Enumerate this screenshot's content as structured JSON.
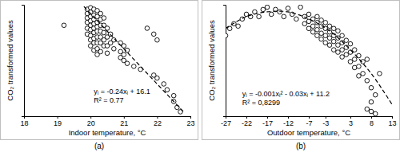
{
  "chart_data": [
    {
      "type": "scatter",
      "title": "(a)",
      "x_label": "Indoor temperature, °C",
      "y_label": "CO₂ transformed values",
      "annotations": [
        "yᵢ = -0.24xᵢ + 16.1",
        "R² = 0.77"
      ],
      "xlim": [
        18,
        23
      ],
      "xticks": [
        18,
        19,
        20,
        21,
        22,
        23
      ],
      "ylim": [
        10.6,
        11.36
      ],
      "tick_labels": "x",
      "grid": false,
      "series": [
        {
          "type": "scatter",
          "marker": "circle",
          "color": "#000000",
          "x": [
            19.2,
            19.9,
            19.9,
            19.9,
            19.9,
            19.9,
            19.9,
            20.0,
            20.0,
            20.0,
            20.0,
            20.0,
            20.0,
            20.0,
            20.0,
            20.0,
            20.1,
            20.1,
            20.1,
            20.1,
            20.1,
            20.1,
            20.1,
            20.1,
            20.1,
            20.2,
            20.2,
            20.2,
            20.2,
            20.2,
            20.2,
            20.2,
            20.2,
            20.2,
            20.3,
            20.3,
            20.3,
            20.3,
            20.3,
            20.3,
            20.3,
            20.4,
            20.4,
            20.4,
            20.4,
            20.4,
            20.5,
            20.5,
            20.5,
            20.5,
            20.6,
            20.6,
            20.7,
            20.7,
            20.9,
            20.9,
            20.9,
            21.0,
            21.0,
            21.0,
            21.1,
            21.1,
            21.3,
            21.5,
            21.7,
            21.9,
            21.9,
            22.0,
            22.0,
            22.2,
            22.3,
            22.5,
            22.5,
            22.6,
            22.7
          ],
          "values": [
            11.22,
            11.33,
            11.3,
            11.27,
            11.24,
            11.2,
            11.16,
            11.34,
            11.31,
            11.28,
            11.25,
            11.22,
            11.19,
            11.15,
            11.12,
            11.08,
            11.33,
            11.29,
            11.26,
            11.23,
            11.2,
            11.17,
            11.13,
            11.1,
            11.05,
            11.32,
            11.28,
            11.24,
            11.21,
            11.18,
            11.14,
            11.1,
            11.06,
            11.02,
            11.3,
            11.26,
            11.22,
            11.18,
            11.14,
            11.1,
            11.04,
            11.27,
            11.22,
            11.17,
            11.12,
            11.08,
            11.2,
            11.14,
            11.08,
            11.03,
            11.16,
            11.1,
            11.12,
            11.06,
            11.1,
            11.04,
            11.0,
            11.08,
            11.02,
            10.98,
            11.05,
            10.96,
            10.94,
            10.92,
            11.2,
            11.16,
            10.88,
            11.12,
            10.86,
            10.82,
            10.78,
            10.74,
            10.7,
            10.66,
            10.63
          ]
        },
        {
          "type": "line",
          "line_style": "dashed",
          "color": "#000000",
          "x": [
            19.8,
            22.8
          ],
          "values": [
            11.348,
            10.628
          ]
        }
      ]
    },
    {
      "type": "scatter",
      "title": "(b)",
      "x_label": "Outdoor temperature, °C",
      "y_label": "CO₂ transformed values",
      "annotations": [
        "yᵢ = -0.001xᵢ² - 0.03xᵢ + 11.2",
        "R² = 0,8299"
      ],
      "xlim": [
        -27,
        13
      ],
      "xticks": [
        -27,
        -22,
        -17,
        -12,
        -7,
        -3,
        3,
        8,
        13
      ],
      "ylim": [
        10.54,
        11.48
      ],
      "tick_labels": "x",
      "grid": false,
      "series": [
        {
          "type": "scatter",
          "marker": "circle",
          "color": "#000000",
          "x": [
            -27,
            -26,
            -25,
            -24,
            -23,
            -22,
            -21,
            -20,
            -19,
            -18,
            -17,
            -16,
            -15,
            -14,
            -13,
            -12,
            -11,
            -10,
            -9,
            -8,
            -8,
            -7,
            -7,
            -7,
            -6,
            -6,
            -6,
            -5,
            -5,
            -5,
            -5,
            -4,
            -4,
            -4,
            -4,
            -3,
            -3,
            -3,
            -3,
            -2,
            -2,
            -2,
            -2,
            -1,
            -1,
            -1,
            -1,
            0,
            0,
            0,
            0,
            1,
            1,
            1,
            1,
            2,
            2,
            2,
            3,
            3,
            3,
            4,
            4,
            4,
            5,
            5,
            5,
            6,
            6,
            7,
            7,
            7,
            8,
            8,
            8,
            9,
            9,
            10
          ],
          "values": [
            11.22,
            11.28,
            11.32,
            11.3,
            11.36,
            11.4,
            11.38,
            11.42,
            11.38,
            11.44,
            11.46,
            11.4,
            11.44,
            11.42,
            11.38,
            11.45,
            11.4,
            11.36,
            11.46,
            11.38,
            11.32,
            11.4,
            11.34,
            11.28,
            11.36,
            11.3,
            11.25,
            11.38,
            11.33,
            11.27,
            11.22,
            11.35,
            11.3,
            11.24,
            11.19,
            11.33,
            11.28,
            11.22,
            11.16,
            11.3,
            11.25,
            11.2,
            11.14,
            11.28,
            11.22,
            11.17,
            11.1,
            11.26,
            11.2,
            11.14,
            11.08,
            11.22,
            11.16,
            11.1,
            11.04,
            11.18,
            11.12,
            11.06,
            11.15,
            11.08,
            11.0,
            11.1,
            11.02,
            10.95,
            11.05,
            10.96,
            10.88,
            11.0,
            10.9,
            11.02,
            10.84,
            10.6,
            10.78,
            10.66,
            10.58,
            10.72,
            10.56,
            10.9
          ]
        },
        {
          "type": "line",
          "line_style": "dashed",
          "color": "#000000",
          "x": [
            -27,
            -22,
            -17,
            -12,
            -7,
            -2,
            3,
            8,
            13
          ],
          "values": [
            11.28,
            11.38,
            11.42,
            11.42,
            11.36,
            11.26,
            11.1,
            10.9,
            10.64
          ]
        }
      ]
    }
  ]
}
